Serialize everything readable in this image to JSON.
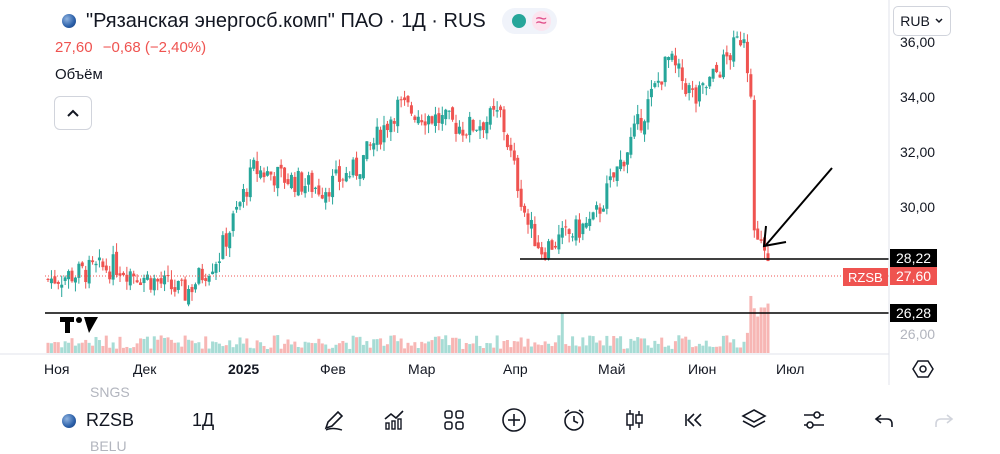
{
  "header": {
    "title": "\"Рязанская энергосб.комп\" ПАО · 1Д · RUS",
    "price": "27,60",
    "change": "−0,68 (−2,40%)",
    "volume_label": "Объём",
    "currency": "RUB"
  },
  "colors": {
    "up": "#26a69a",
    "down": "#ef5350",
    "up_vol": "#a7dcd5",
    "down_vol": "#f7b6b4"
  },
  "price_axis": {
    "labels": [
      "36,00",
      "34,00",
      "32,00",
      "30,00"
    ],
    "bottom_label": "26,00"
  },
  "tags": {
    "line1": "28,22",
    "line2": "26,28",
    "symbol_tag": "RZSB",
    "last_price": "27,60"
  },
  "time_axis": {
    "labels": [
      "Ноя",
      "Дек",
      "2025",
      "Фев",
      "Мар",
      "Апр",
      "Май",
      "Июн",
      "Июл"
    ]
  },
  "icons": [
    "pencil-icon",
    "indicators-icon",
    "templates-icon",
    "add-icon",
    "alert-clock-icon",
    "candles-icon",
    "replay-icon",
    "layers-icon",
    "settings-sliders-icon",
    "undo-icon"
  ],
  "bottom": {
    "symbol": "RZSB",
    "timeframe": "1Д",
    "watch_above": "SNGS",
    "watch_below": "BELU"
  },
  "chart_data": {
    "type": "candlestick",
    "x_range": [
      "Ноя",
      "Июл"
    ],
    "y_range": [
      26.0,
      37.0
    ],
    "horizontal_lines": [
      28.22,
      26.28
    ],
    "last_price": 27.6,
    "segments": [
      {
        "from": 27.5,
        "to": 28.0,
        "n": 20
      },
      {
        "from": 28.0,
        "to": 27.0,
        "n": 20
      },
      {
        "from": 27.0,
        "to": 28.4,
        "n": 10
      },
      {
        "from": 28.4,
        "to": 31.5,
        "n": 10
      },
      {
        "from": 31.5,
        "to": 30.8,
        "n": 20
      },
      {
        "from": 30.8,
        "to": 31.5,
        "n": 10
      },
      {
        "from": 31.5,
        "to": 33.8,
        "n": 12
      },
      {
        "from": 33.8,
        "to": 33.0,
        "n": 20
      },
      {
        "from": 33.0,
        "to": 33.5,
        "n": 10
      },
      {
        "from": 33.5,
        "to": 29.5,
        "n": 8
      },
      {
        "from": 29.5,
        "to": 28.6,
        "n": 4
      },
      {
        "from": 28.6,
        "to": 29.6,
        "n": 15
      },
      {
        "from": 29.6,
        "to": 32.8,
        "n": 12
      },
      {
        "from": 32.8,
        "to": 35.5,
        "n": 10
      },
      {
        "from": 35.5,
        "to": 34.0,
        "n": 8
      },
      {
        "from": 34.0,
        "to": 35.7,
        "n": 10
      },
      {
        "from": 35.7,
        "to": 36.5,
        "n": 4
      },
      {
        "from": 36.5,
        "to": 33.0,
        "n": 3
      },
      {
        "from": 29.3,
        "to": 28.3,
        "n": 3
      },
      {
        "from": 28.3,
        "to": 27.6,
        "n": 2
      }
    ]
  }
}
